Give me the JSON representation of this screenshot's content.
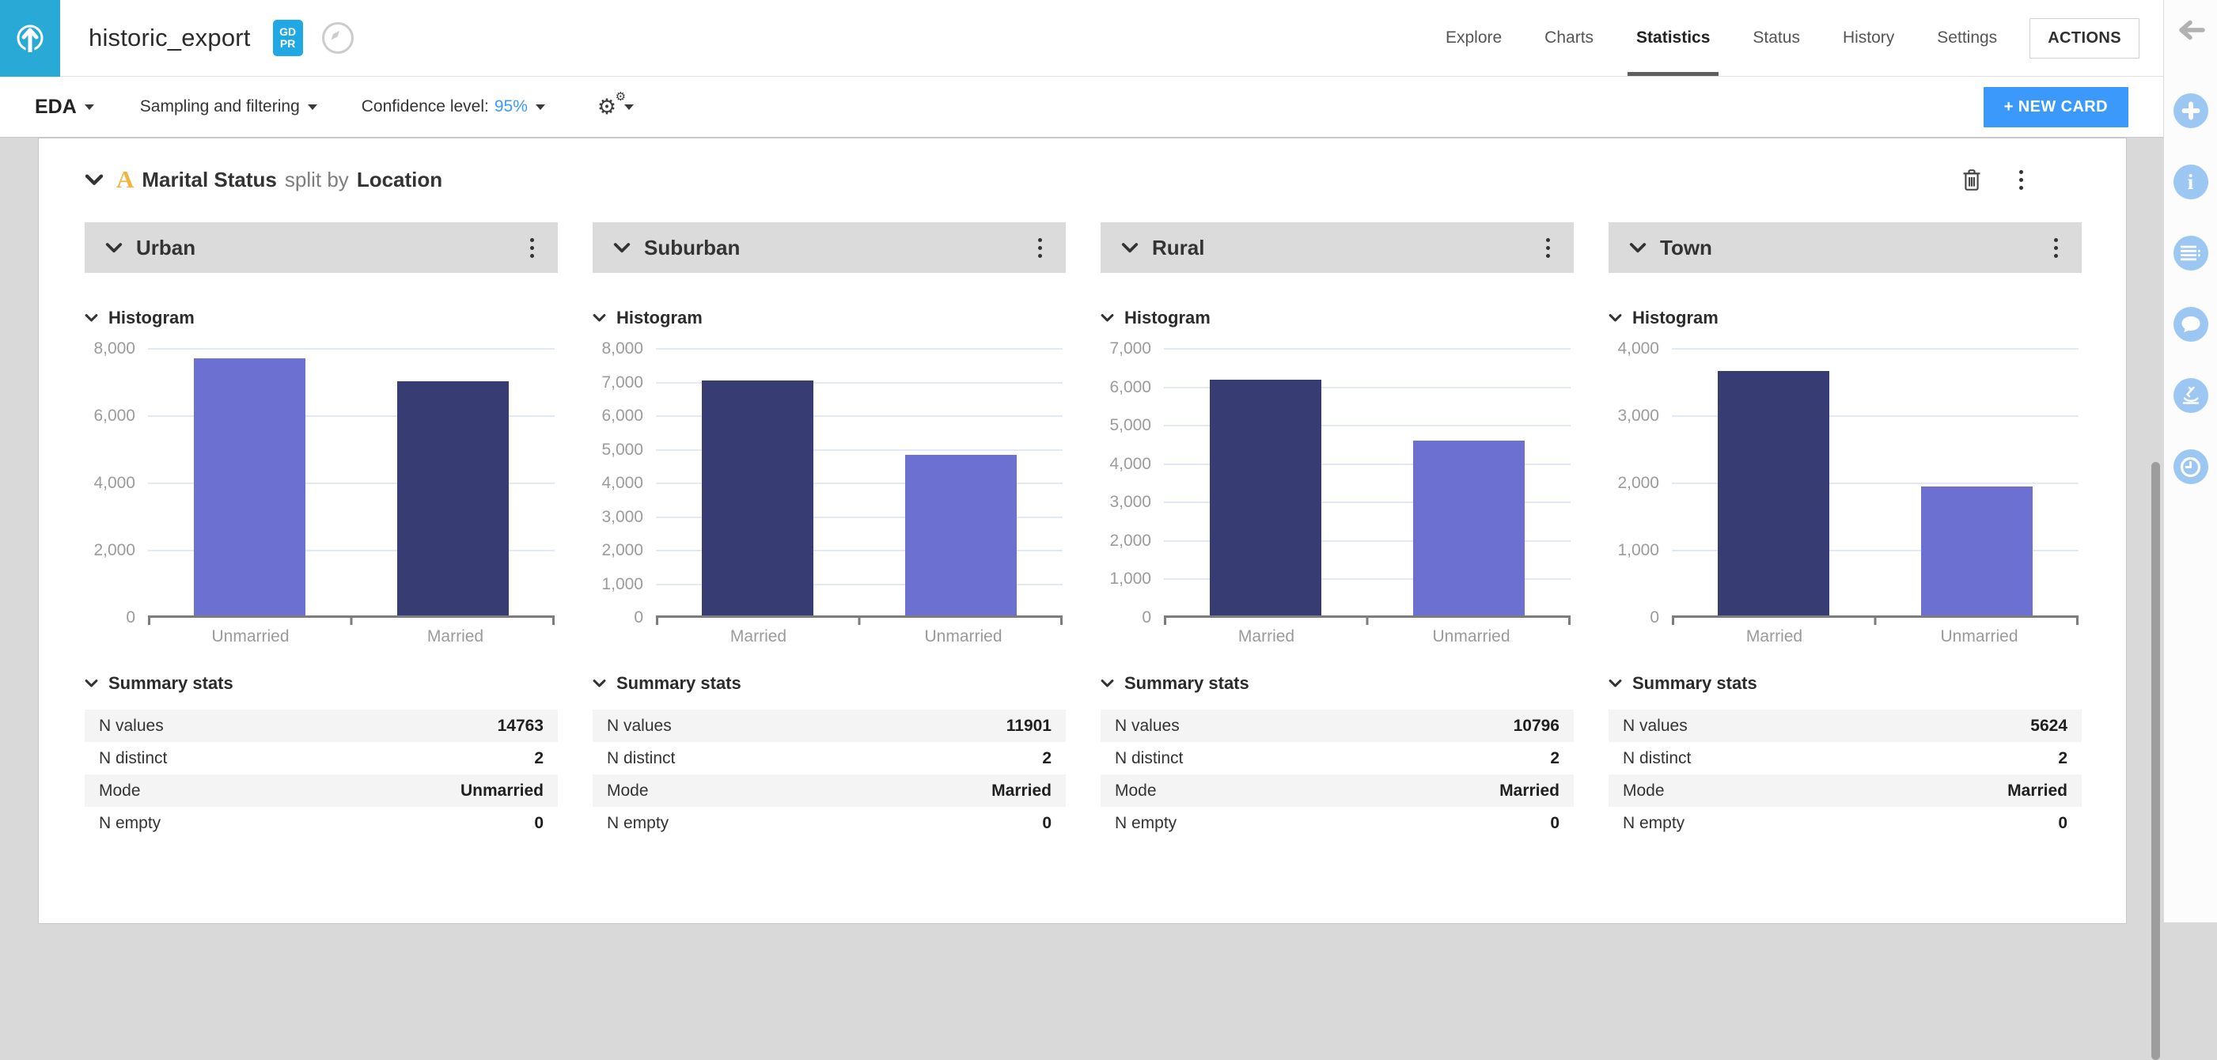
{
  "header": {
    "title": "historic_export",
    "gdpr_badge": {
      "lines": [
        "GD",
        "PR"
      ]
    },
    "nav": [
      {
        "label": "Explore",
        "active": false
      },
      {
        "label": "Charts",
        "active": false
      },
      {
        "label": "Statistics",
        "active": true
      },
      {
        "label": "Status",
        "active": false
      },
      {
        "label": "History",
        "active": false
      },
      {
        "label": "Settings",
        "active": false
      }
    ],
    "actions_label": "ACTIONS"
  },
  "toolbar": {
    "eda_label": "EDA",
    "sampling_label": "Sampling and filtering",
    "confidence_prefix": "Confidence level:",
    "confidence_value": "95%",
    "new_card_label": "+ NEW CARD"
  },
  "card": {
    "variable": "Marital Status",
    "connector": "split by",
    "split_by": "Location",
    "histogram_section_label": "Histogram",
    "summary_section_label": "Summary stats"
  },
  "chart_data": [
    {
      "type": "bar",
      "location": "Urban",
      "categories": [
        "Unmarried",
        "Married"
      ],
      "values": [
        7720,
        7043
      ],
      "bar_colors": [
        "#6c71d1",
        "#373c73"
      ],
      "ylim": [
        0,
        8000
      ],
      "ytick_step": 2000,
      "grid": true,
      "summary": [
        {
          "label": "N values",
          "value": "14763"
        },
        {
          "label": "N distinct",
          "value": "2"
        },
        {
          "label": "Mode",
          "value": "Unmarried"
        },
        {
          "label": "N empty",
          "value": "0"
        }
      ]
    },
    {
      "type": "bar",
      "location": "Suburban",
      "categories": [
        "Married",
        "Unmarried"
      ],
      "values": [
        7060,
        4841
      ],
      "bar_colors": [
        "#373c73",
        "#6c71d1"
      ],
      "ylim": [
        0,
        8000
      ],
      "ytick_step": 1000,
      "grid": true,
      "summary": [
        {
          "label": "N values",
          "value": "11901"
        },
        {
          "label": "N distinct",
          "value": "2"
        },
        {
          "label": "Mode",
          "value": "Married"
        },
        {
          "label": "N empty",
          "value": "0"
        }
      ]
    },
    {
      "type": "bar",
      "location": "Rural",
      "categories": [
        "Married",
        "Unmarried"
      ],
      "values": [
        6190,
        4606
      ],
      "bar_colors": [
        "#373c73",
        "#6c71d1"
      ],
      "ylim": [
        0,
        7000
      ],
      "ytick_step": 1000,
      "grid": true,
      "summary": [
        {
          "label": "N values",
          "value": "10796"
        },
        {
          "label": "N distinct",
          "value": "2"
        },
        {
          "label": "Mode",
          "value": "Married"
        },
        {
          "label": "N empty",
          "value": "0"
        }
      ]
    },
    {
      "type": "bar",
      "location": "Town",
      "categories": [
        "Married",
        "Unmarried"
      ],
      "values": [
        3674,
        1950
      ],
      "bar_colors": [
        "#373c73",
        "#6c71d1"
      ],
      "ylim": [
        0,
        4000
      ],
      "ytick_step": 1000,
      "grid": true,
      "summary": [
        {
          "label": "N values",
          "value": "5624"
        },
        {
          "label": "N distinct",
          "value": "2"
        },
        {
          "label": "Mode",
          "value": "Married"
        },
        {
          "label": "N empty",
          "value": "0"
        }
      ]
    }
  ],
  "sidebar": {
    "icons": [
      "plus",
      "info",
      "list",
      "comment",
      "microscope",
      "clock"
    ]
  },
  "colors": {
    "logo_teal": "#28a9d6",
    "badge_blue": "#1fa8e4",
    "accent_blue": "#3b99fc",
    "bar_light": "#6c71d1",
    "bar_dark": "#373c73",
    "warning_orange": "#f0b440",
    "column_header_gray": "#dbdbdb"
  }
}
